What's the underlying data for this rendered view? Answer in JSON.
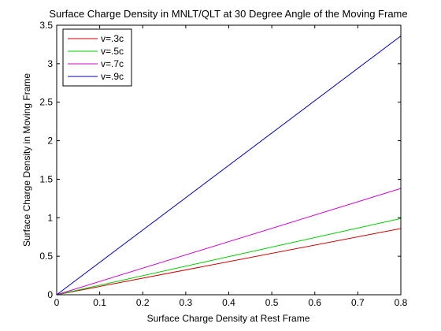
{
  "chart_data": {
    "type": "line",
    "title": "Surface Charge Density in MNLT/QLT at 30 Degree Angle of the Moving Frame",
    "xlabel": "Surface Charge Density at Rest Frame",
    "ylabel": "Surface Charge Density in Moving Frame",
    "xlim": [
      0,
      0.8
    ],
    "ylim": [
      0,
      3.5
    ],
    "xticks": [
      "0",
      "0.1",
      "0.2",
      "0.3",
      "0.4",
      "0.5",
      "0.6",
      "0.7",
      "0.8"
    ],
    "yticks": [
      "0",
      "0.5",
      "1",
      "1.5",
      "2",
      "2.5",
      "3",
      "3.5"
    ],
    "grid": false,
    "legend_position": "top-left",
    "series": [
      {
        "name": "v=.3c",
        "color": "#cc0000",
        "x": [
          0,
          0.8
        ],
        "y": [
          0,
          0.86
        ]
      },
      {
        "name": "v=.5c",
        "color": "#00cc00",
        "x": [
          0,
          0.8
        ],
        "y": [
          0,
          0.99
        ]
      },
      {
        "name": "v=.7c",
        "color": "#cc00cc",
        "x": [
          0,
          0.8
        ],
        "y": [
          0,
          1.38
        ]
      },
      {
        "name": "v=.9c",
        "color": "#0000aa",
        "x": [
          0,
          0.8
        ],
        "y": [
          0,
          3.36
        ]
      }
    ]
  }
}
